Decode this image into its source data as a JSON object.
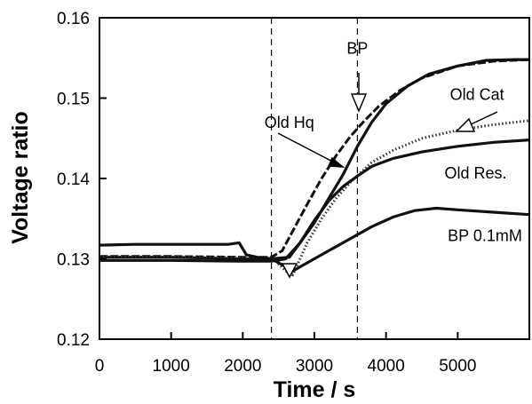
{
  "chart_data": {
    "type": "line",
    "title": "",
    "xlabel": "Time / s",
    "ylabel": "Voltage ratio",
    "xlim": [
      0,
      6000
    ],
    "ylim": [
      0.12,
      0.16
    ],
    "x_ticks": [
      0,
      1000,
      2000,
      3000,
      4000,
      5000
    ],
    "x_tick_labels": [
      "0",
      "1000",
      "2000",
      "3000",
      "4000",
      "5000"
    ],
    "y_ticks": [
      0.12,
      0.13,
      0.14,
      0.15,
      0.16
    ],
    "y_tick_labels": [
      "0.12",
      "0.13",
      "0.14",
      "0.15",
      "0.16"
    ],
    "grid": false,
    "legend": "none",
    "vlines": [
      2400,
      3600
    ],
    "series": [
      {
        "name": "BP",
        "color": "#111111",
        "style": "solid",
        "x": [
          0,
          1000,
          2000,
          2400,
          2650,
          2800,
          3000,
          3200,
          3400,
          3600,
          3800,
          4000,
          4300,
          4600,
          5000,
          5400,
          5800,
          6000
        ],
        "y": [
          0.1302,
          0.1302,
          0.13,
          0.13,
          0.1302,
          0.132,
          0.1345,
          0.1375,
          0.1405,
          0.144,
          0.147,
          0.1493,
          0.1515,
          0.153,
          0.154,
          0.1547,
          0.1548,
          0.1548
        ]
      },
      {
        "name": "Old Hq",
        "color": "#111111",
        "style": "dash",
        "x": [
          0,
          1000,
          2000,
          2400,
          2550,
          2700,
          2900,
          3100,
          3300,
          3500,
          3700,
          3900,
          4200,
          4500,
          5000,
          5500,
          6000
        ],
        "y": [
          0.1303,
          0.1303,
          0.1302,
          0.1302,
          0.131,
          0.1335,
          0.1368,
          0.14,
          0.1428,
          0.1452,
          0.1472,
          0.149,
          0.151,
          0.1525,
          0.154,
          0.1546,
          0.1548
        ]
      },
      {
        "name": "Old Cat",
        "color": "#333333",
        "style": "dot",
        "x": [
          0,
          1000,
          2000,
          2400,
          2600,
          2700,
          2900,
          3100,
          3300,
          3500,
          3800,
          4100,
          4500,
          5000,
          5500,
          6000
        ],
        "y": [
          0.1303,
          0.1303,
          0.1302,
          0.1302,
          0.1285,
          0.128,
          0.132,
          0.135,
          0.1375,
          0.1395,
          0.142,
          0.1435,
          0.145,
          0.146,
          0.1467,
          0.1472
        ]
      },
      {
        "name": "Old Res.",
        "color": "#111111",
        "style": "solid",
        "x": [
          0,
          1000,
          2000,
          2400,
          2600,
          2800,
          3000,
          3200,
          3400,
          3600,
          3800,
          4100,
          4500,
          5000,
          5500,
          6000
        ],
        "y": [
          0.1298,
          0.1298,
          0.1297,
          0.1297,
          0.13,
          0.132,
          0.1348,
          0.1372,
          0.139,
          0.1403,
          0.1415,
          0.1425,
          0.1433,
          0.144,
          0.1445,
          0.1448
        ]
      },
      {
        "name": "BP 0.1mM",
        "color": "#111111",
        "style": "solid",
        "x": [
          0,
          500,
          1000,
          1500,
          1800,
          1950,
          2050,
          2200,
          2400,
          2600,
          2700,
          2900,
          3200,
          3500,
          3800,
          4100,
          4400,
          4700,
          5000,
          5500,
          6000
        ],
        "y": [
          0.1317,
          0.1318,
          0.1318,
          0.1318,
          0.1318,
          0.132,
          0.1305,
          0.1302,
          0.13,
          0.129,
          0.1285,
          0.1295,
          0.131,
          0.1325,
          0.134,
          0.1352,
          0.136,
          0.1363,
          0.1361,
          0.1358,
          0.1355
        ]
      }
    ],
    "annotations": [
      {
        "text": "BP",
        "x": 3600,
        "y": 0.1555
      },
      {
        "text": "Old Hq",
        "x": 2650,
        "y": 0.1463
      },
      {
        "text": "Old Cat",
        "x": 5270,
        "y": 0.1498
      },
      {
        "text": "Old Res.",
        "x": 5250,
        "y": 0.14
      },
      {
        "text": "BP 0.1mM",
        "x": 5380,
        "y": 0.1322
      }
    ]
  }
}
